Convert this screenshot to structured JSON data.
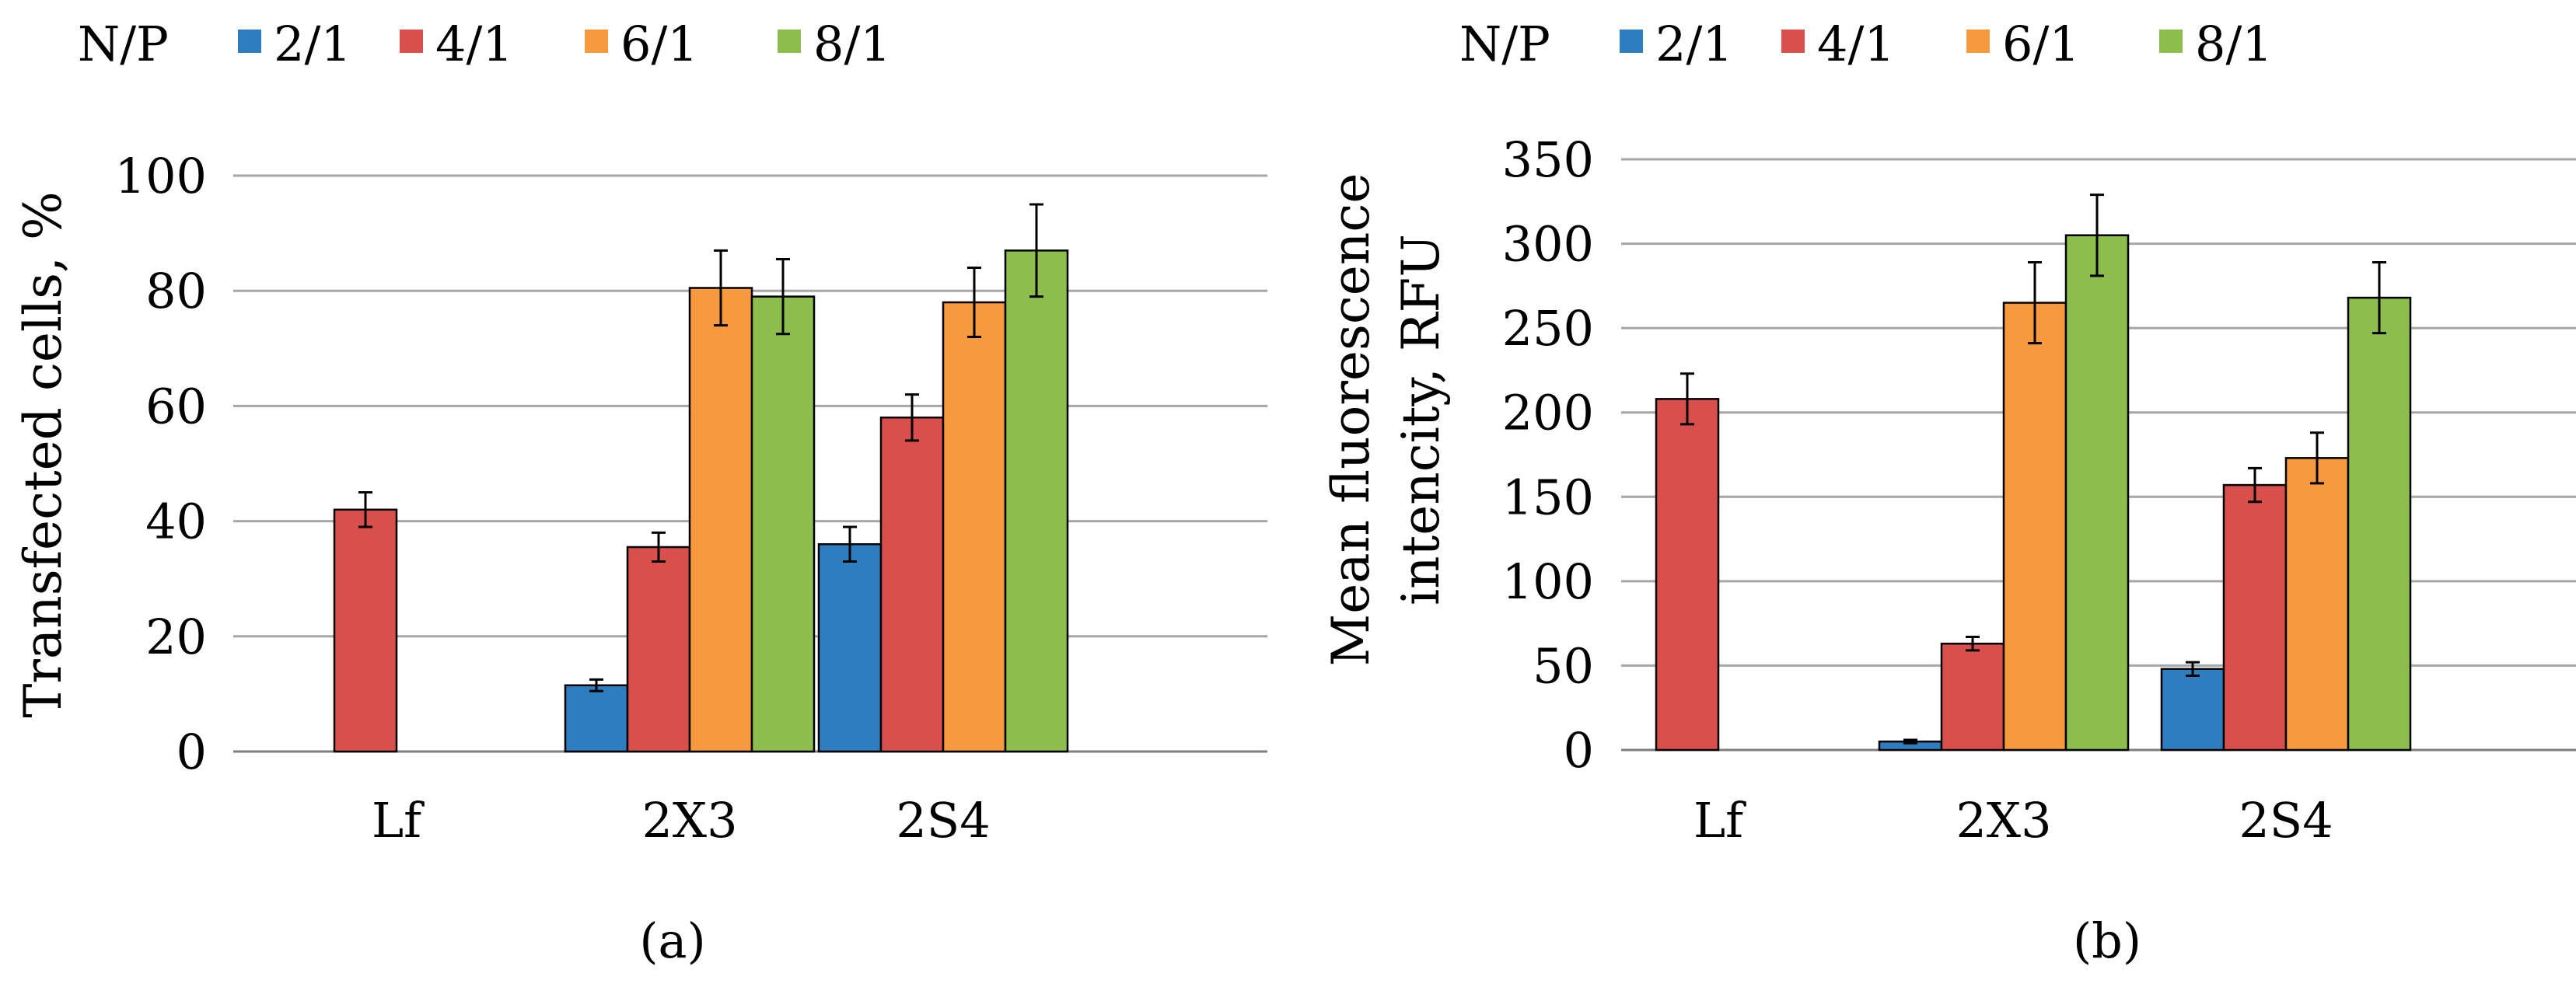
{
  "chart_data": [
    {
      "type": "bar",
      "panel_label": "(a)",
      "legend_title": "N/P",
      "categories": [
        "Lf",
        "2X3",
        "2S4"
      ],
      "series": [
        {
          "name": "2/1",
          "color": "#2e7ebf",
          "values": [
            null,
            11.5,
            36
          ],
          "errors": [
            null,
            1,
            3
          ]
        },
        {
          "name": "4/1",
          "color": "#d94f4c",
          "values": [
            42,
            35.5,
            58
          ],
          "errors": [
            3,
            2.5,
            4
          ]
        },
        {
          "name": "6/1",
          "color": "#f79a3d",
          "values": [
            null,
            80.5,
            78
          ],
          "errors": [
            null,
            6.5,
            6
          ]
        },
        {
          "name": "8/1",
          "color": "#8cbd4d",
          "values": [
            null,
            79,
            87
          ],
          "errors": [
            null,
            6.5,
            8
          ]
        }
      ],
      "ylabel": "Transfected cells, %",
      "xlabel": "",
      "ylim": [
        0,
        100
      ],
      "yticks": [
        0,
        20,
        40,
        60,
        80,
        100
      ],
      "grid": true,
      "legend": "top"
    },
    {
      "type": "bar",
      "panel_label": "(b)",
      "legend_title": "N/P",
      "categories": [
        "Lf",
        "2X3",
        "2S4"
      ],
      "series": [
        {
          "name": "2/1",
          "color": "#2e7ebf",
          "values": [
            null,
            5,
            48
          ],
          "errors": [
            null,
            1,
            4
          ]
        },
        {
          "name": "4/1",
          "color": "#d94f4c",
          "values": [
            208,
            63,
            157
          ],
          "errors": [
            15,
            4,
            10
          ]
        },
        {
          "name": "6/1",
          "color": "#f79a3d",
          "values": [
            null,
            265,
            173
          ],
          "errors": [
            null,
            24,
            15
          ]
        },
        {
          "name": "8/1",
          "color": "#8cbd4d",
          "values": [
            null,
            305,
            268
          ],
          "errors": [
            null,
            24,
            21
          ]
        }
      ],
      "ylabel_lines": [
        "Mean fluorescence",
        "intencity, RFU"
      ],
      "xlabel": "",
      "ylim": [
        0,
        350
      ],
      "yticks": [
        0,
        50,
        100,
        150,
        200,
        250,
        300,
        350
      ],
      "grid": true,
      "legend": "top"
    }
  ]
}
